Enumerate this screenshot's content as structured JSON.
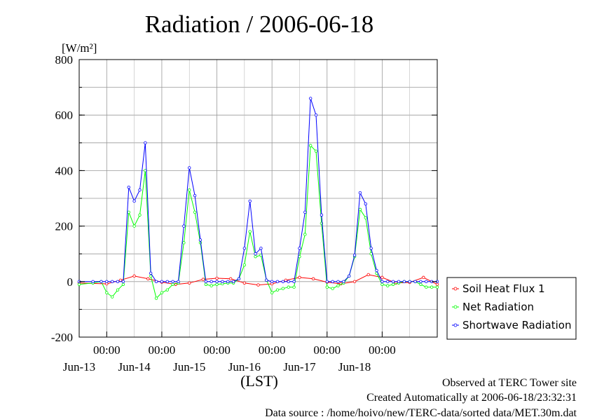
{
  "chart_data": {
    "type": "line",
    "title": "Radiation / 2006-06-18",
    "ylabel": "[W/m²]",
    "xlabel": "(LST)",
    "ylim": [
      -200,
      800
    ],
    "yticks": [
      -200,
      0,
      200,
      400,
      600,
      800
    ],
    "x_range_days": [
      "2006-06-12T12:00",
      "2006-06-18T24:00"
    ],
    "x_tick_labels": [
      "00:00",
      "00:00",
      "00:00",
      "00:00",
      "00:00",
      "00:00"
    ],
    "x_day_labels": [
      "Jun-13",
      "Jun-14",
      "Jun-15",
      "Jun-16",
      "Jun-17",
      "Jun-18"
    ],
    "grid": true,
    "legend_position": "right",
    "series": [
      {
        "name": "Soil Heat Flux 1",
        "color": "#ff0000",
        "x": [
          12.5,
          13.0,
          13.25,
          13.5,
          13.75,
          14.0,
          14.25,
          14.5,
          14.75,
          15.0,
          15.25,
          15.5,
          15.75,
          16.0,
          16.25,
          16.5,
          16.75,
          17.0,
          17.25,
          17.5,
          17.75,
          18.0,
          18.25,
          18.5,
          18.75,
          19.0
        ],
        "y": [
          -5,
          -8,
          5,
          20,
          10,
          -2,
          -10,
          -5,
          8,
          12,
          10,
          -5,
          -12,
          -8,
          5,
          15,
          10,
          -2,
          -8,
          0,
          25,
          15,
          -5,
          -3,
          15,
          -10
        ]
      },
      {
        "name": "Net Radiation",
        "color": "#00ff00",
        "x": [
          12.5,
          12.75,
          12.9,
          13.0,
          13.1,
          13.2,
          13.3,
          13.4,
          13.5,
          13.6,
          13.7,
          13.8,
          13.9,
          14.0,
          14.1,
          14.2,
          14.3,
          14.4,
          14.5,
          14.6,
          14.7,
          14.8,
          14.9,
          15.0,
          15.1,
          15.2,
          15.3,
          15.4,
          15.5,
          15.6,
          15.7,
          15.8,
          15.9,
          16.0,
          16.1,
          16.2,
          16.3,
          16.4,
          16.5,
          16.6,
          16.7,
          16.8,
          16.9,
          17.0,
          17.1,
          17.2,
          17.3,
          17.4,
          17.5,
          17.6,
          17.7,
          17.8,
          17.9,
          18.0,
          18.1,
          18.2,
          18.3,
          18.4,
          18.5,
          18.6,
          18.7,
          18.8,
          18.9,
          19.0
        ],
        "y": [
          -10,
          -5,
          0,
          -40,
          -55,
          -30,
          -10,
          250,
          200,
          240,
          400,
          20,
          -60,
          -40,
          -30,
          -10,
          -5,
          140,
          330,
          250,
          140,
          -10,
          -15,
          -10,
          -8,
          -5,
          -5,
          10,
          60,
          180,
          90,
          95,
          5,
          -40,
          -30,
          -25,
          -20,
          -20,
          90,
          170,
          490,
          470,
          210,
          -20,
          -25,
          -15,
          -5,
          20,
          90,
          260,
          230,
          100,
          30,
          -10,
          -15,
          -10,
          -5,
          0,
          0,
          0,
          -10,
          -20,
          -20,
          -20
        ]
      },
      {
        "name": "Shortwave Radiation",
        "color": "#0000ff",
        "x": [
          12.5,
          12.75,
          12.9,
          13.0,
          13.1,
          13.2,
          13.3,
          13.4,
          13.5,
          13.6,
          13.7,
          13.8,
          13.9,
          14.0,
          14.1,
          14.2,
          14.3,
          14.4,
          14.5,
          14.6,
          14.7,
          14.8,
          14.9,
          15.0,
          15.1,
          15.2,
          15.3,
          15.4,
          15.5,
          15.6,
          15.7,
          15.8,
          15.9,
          16.0,
          16.1,
          16.2,
          16.3,
          16.4,
          16.5,
          16.6,
          16.7,
          16.8,
          16.9,
          17.0,
          17.1,
          17.2,
          17.3,
          17.4,
          17.5,
          17.6,
          17.7,
          17.8,
          17.9,
          18.0,
          18.1,
          18.2,
          18.3,
          18.4,
          18.5,
          18.6,
          18.7,
          18.8,
          18.9,
          19.0
        ],
        "y": [
          0,
          0,
          0,
          0,
          0,
          0,
          0,
          340,
          290,
          330,
          500,
          30,
          0,
          0,
          0,
          0,
          0,
          200,
          410,
          310,
          150,
          0,
          0,
          0,
          0,
          0,
          0,
          10,
          120,
          290,
          100,
          120,
          5,
          0,
          0,
          0,
          0,
          0,
          120,
          250,
          660,
          600,
          240,
          0,
          0,
          0,
          0,
          20,
          95,
          320,
          280,
          120,
          40,
          0,
          0,
          0,
          0,
          0,
          0,
          0,
          0,
          0,
          0,
          0
        ]
      }
    ]
  },
  "footer": {
    "line1": "Observed at TERC Tower site",
    "line2": "Created Automatically at 2006-06-18/23:32:31",
    "line3": "Data source : /home/hoivo/new/TERC-data/sorted  data/MET.30m.dat"
  }
}
